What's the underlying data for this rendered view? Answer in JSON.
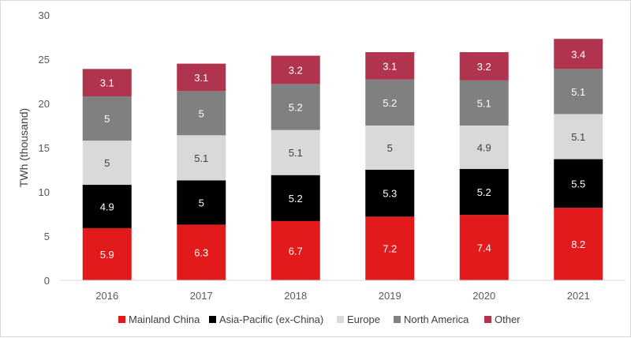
{
  "chart_data": {
    "type": "bar",
    "stacked": true,
    "title": "",
    "xlabel": "",
    "ylabel": "TWh (thousand)",
    "ylim": [
      0,
      30
    ],
    "yticks": [
      0,
      5,
      10,
      15,
      20,
      25,
      30
    ],
    "grid": false,
    "legend_position": "bottom",
    "categories": [
      "2016",
      "2017",
      "2018",
      "2019",
      "2020",
      "2021"
    ],
    "series": [
      {
        "name": "Mainland China",
        "color": "#e31a1c",
        "label_color": "#ffffff",
        "values": [
          5.9,
          6.3,
          6.7,
          7.2,
          7.4,
          8.2
        ]
      },
      {
        "name": "Asia-Pacific (ex-China)",
        "color": "#000000",
        "label_color": "#ffffff",
        "values": [
          4.9,
          5,
          5.2,
          5.3,
          5.2,
          5.5
        ]
      },
      {
        "name": "Europe",
        "color": "#d9d9d9",
        "label_color": "#404040",
        "values": [
          5,
          5.1,
          5.1,
          5,
          4.9,
          5.1
        ]
      },
      {
        "name": "North America",
        "color": "#808080",
        "label_color": "#ffffff",
        "values": [
          5,
          5,
          5.2,
          5.2,
          5.1,
          5.1
        ]
      },
      {
        "name": "Other",
        "color": "#b0344e",
        "label_color": "#ffffff",
        "values": [
          3.1,
          3.1,
          3.2,
          3.1,
          3.2,
          3.4
        ]
      }
    ]
  }
}
